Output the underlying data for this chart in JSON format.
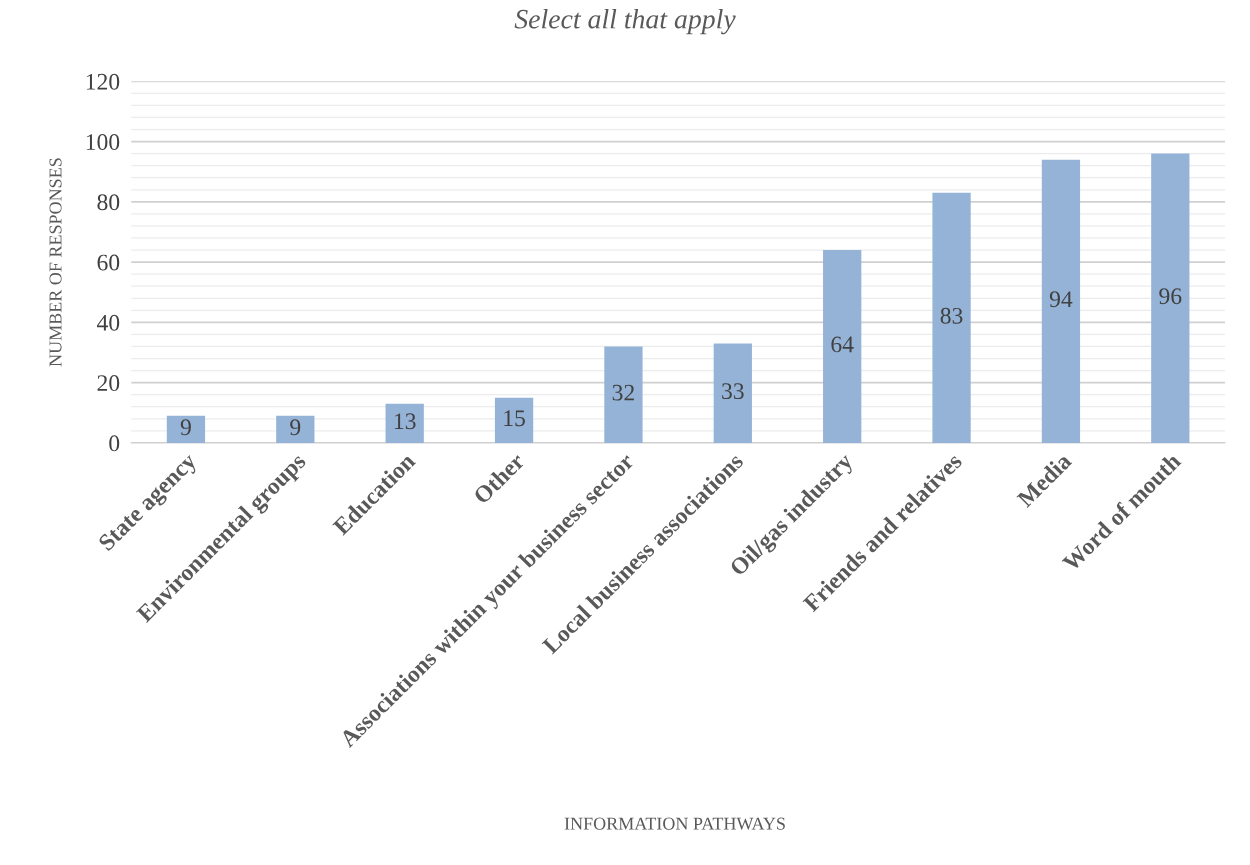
{
  "chart_data": {
    "type": "bar",
    "title": "Select all that apply",
    "xlabel": "INFORMATION PATHWAYS",
    "ylabel": "NUMBER OF RESPONSES",
    "categories": [
      "State agency",
      "Environmental groups",
      "Education",
      "Other",
      "Associations within your business sector",
      "Local business associations",
      "Oil/gas industry",
      "Friends and relatives",
      "Media",
      "Word of mouth"
    ],
    "values": [
      9,
      9,
      13,
      15,
      32,
      33,
      64,
      83,
      94,
      96
    ],
    "color": "#95b3d7",
    "ylim": [
      0,
      120
    ],
    "yticks": [
      0,
      {
        "value": 4,
        "label": null
      },
      {
        "value": 8,
        "label": null
      },
      {
        "value": 12,
        "label": null
      },
      {
        "value": 16,
        "label": null
      },
      20,
      {
        "value": 24,
        "label": null
      },
      {
        "value": 28,
        "label": null
      },
      {
        "value": 32,
        "label": null
      },
      {
        "value": 36,
        "label": null
      },
      40,
      {
        "value": 44,
        "label": null
      },
      {
        "value": 48,
        "label": null
      },
      {
        "value": 52,
        "label": null
      },
      {
        "value": 56,
        "label": null
      },
      60,
      {
        "value": 64,
        "label": null
      },
      {
        "value": 68,
        "label": null
      },
      {
        "value": 72,
        "label": null
      },
      {
        "value": 76,
        "label": null
      },
      80,
      {
        "value": 84,
        "label": null
      },
      {
        "value": 88,
        "label": null
      },
      {
        "value": 92,
        "label": null
      },
      {
        "value": 96,
        "label": null
      },
      100,
      {
        "value": 104,
        "label": null
      },
      {
        "value": 108,
        "label": null
      },
      {
        "value": 112,
        "label": null
      },
      {
        "value": 116,
        "label": null
      },
      120
    ],
    "grid": "y",
    "data_labels": true
  }
}
